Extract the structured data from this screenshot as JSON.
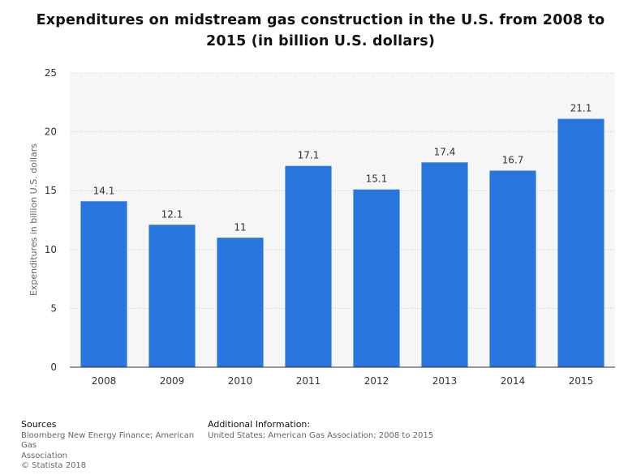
{
  "chart_data": {
    "type": "bar",
    "title": "Expenditures on midstream gas construction in the U.S. from 2008 to 2015 (in billion U.S. dollars)",
    "title_lines": [
      "Expenditures on midstream gas construction in the U.S. from 2008 to",
      "2015 (in billion U.S. dollars)"
    ],
    "categories": [
      "2008",
      "2009",
      "2010",
      "2011",
      "2012",
      "2013",
      "2014",
      "2015"
    ],
    "values": [
      14.1,
      12.1,
      11,
      17.1,
      15.1,
      17.4,
      16.7,
      21.1
    ],
    "value_labels": [
      "14.1",
      "12.1",
      "11",
      "17.1",
      "15.1",
      "17.4",
      "16.7",
      "21.1"
    ],
    "xlabel": "",
    "ylabel": "Expenditures in billion U.S. dollars",
    "ylim": [
      0,
      25
    ],
    "yticks": [
      0,
      5,
      10,
      15,
      20,
      25
    ],
    "grid": true,
    "bar_color": "#2876dd"
  },
  "footer": {
    "sources_heading": "Sources",
    "sources_lines": [
      "Bloomberg New Energy Finance; American Gas",
      "Association",
      "© Statista 2018"
    ],
    "info_heading": "Additional Information:",
    "info_text": "United States; American Gas Association; 2008 to 2015"
  }
}
